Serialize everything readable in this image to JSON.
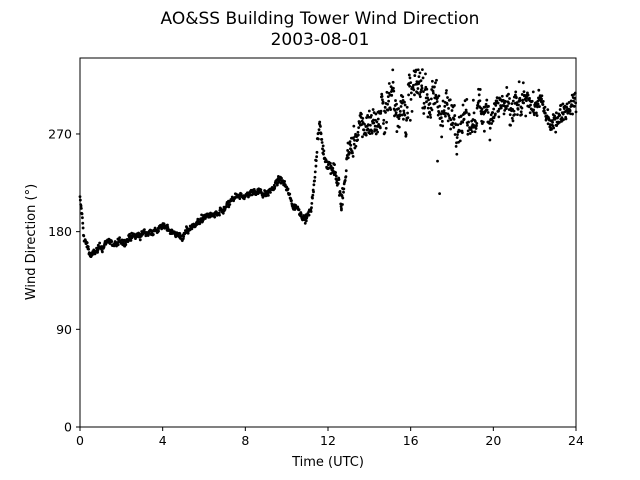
{
  "chart_data": {
    "type": "scatter",
    "title": "AO&SS Building Tower Wind Direction",
    "subtitle": "2003-08-01",
    "xlabel": "Time (UTC)",
    "ylabel": "Wind Direction (°)",
    "xlim": [
      0,
      24
    ],
    "ylim": [
      0,
      340
    ],
    "xticks": [
      0,
      4,
      8,
      12,
      16,
      20,
      24
    ],
    "yticks": [
      0,
      90,
      180,
      270
    ],
    "grid": false,
    "marker_color": "#000000",
    "trend": [
      [
        0.0,
        210
      ],
      [
        0.1,
        195
      ],
      [
        0.2,
        172
      ],
      [
        0.35,
        168
      ],
      [
        0.5,
        158
      ],
      [
        0.7,
        160
      ],
      [
        1.0,
        165
      ],
      [
        1.4,
        172
      ],
      [
        1.6,
        168
      ],
      [
        2.0,
        170
      ],
      [
        2.4,
        174
      ],
      [
        2.8,
        176
      ],
      [
        3.0,
        178
      ],
      [
        3.4,
        180
      ],
      [
        3.8,
        182
      ],
      [
        4.2,
        185
      ],
      [
        4.6,
        178
      ],
      [
        5.0,
        175
      ],
      [
        5.4,
        185
      ],
      [
        5.8,
        190
      ],
      [
        6.2,
        195
      ],
      [
        6.6,
        195
      ],
      [
        7.0,
        200
      ],
      [
        7.4,
        210
      ],
      [
        7.8,
        212
      ],
      [
        8.2,
        215
      ],
      [
        8.6,
        218
      ],
      [
        9.0,
        215
      ],
      [
        9.4,
        222
      ],
      [
        9.7,
        228
      ],
      [
        10.0,
        220
      ],
      [
        10.3,
        205
      ],
      [
        10.6,
        200
      ],
      [
        10.9,
        192
      ],
      [
        11.1,
        195
      ],
      [
        11.3,
        215
      ],
      [
        11.5,
        265
      ],
      [
        11.6,
        278
      ],
      [
        11.75,
        255
      ],
      [
        11.9,
        245
      ],
      [
        12.1,
        242
      ],
      [
        12.3,
        238
      ],
      [
        12.5,
        222
      ],
      [
        12.65,
        205
      ],
      [
        12.8,
        225
      ],
      [
        13.0,
        258
      ],
      [
        13.3,
        262
      ],
      [
        13.6,
        275
      ],
      [
        13.9,
        280
      ],
      [
        14.2,
        282
      ],
      [
        14.5,
        285
      ],
      [
        14.8,
        295
      ],
      [
        15.1,
        310
      ],
      [
        15.4,
        300
      ],
      [
        15.7,
        290
      ],
      [
        16.0,
        300
      ],
      [
        16.3,
        318
      ],
      [
        16.6,
        315
      ],
      [
        16.9,
        300
      ],
      [
        17.2,
        305
      ],
      [
        17.5,
        292
      ],
      [
        17.8,
        288
      ],
      [
        18.1,
        286
      ],
      [
        18.4,
        284
      ],
      [
        18.7,
        280
      ],
      [
        19.0,
        282
      ],
      [
        19.3,
        290
      ],
      [
        19.6,
        294
      ],
      [
        19.9,
        292
      ],
      [
        20.2,
        295
      ],
      [
        20.5,
        300
      ],
      [
        20.8,
        285
      ],
      [
        21.1,
        295
      ],
      [
        21.4,
        290
      ],
      [
        21.7,
        300
      ],
      [
        22.0,
        296
      ],
      [
        22.3,
        298
      ],
      [
        22.6,
        285
      ],
      [
        22.9,
        280
      ],
      [
        23.2,
        290
      ],
      [
        23.5,
        295
      ],
      [
        23.8,
        298
      ],
      [
        24.0,
        300
      ]
    ],
    "noise": [
      [
        0,
        4
      ],
      [
        11.0,
        4
      ],
      [
        11.3,
        8
      ],
      [
        12.0,
        7
      ],
      [
        13.0,
        14
      ],
      [
        14.5,
        22
      ],
      [
        17.0,
        26
      ],
      [
        18.5,
        20
      ],
      [
        21.0,
        18
      ],
      [
        22.5,
        12
      ],
      [
        24,
        11
      ]
    ],
    "outliers": [
      [
        17.4,
        215
      ],
      [
        17.3,
        245
      ],
      [
        12.7,
        205
      ],
      [
        12.65,
        200
      ]
    ],
    "samples_per_hour": 60
  }
}
